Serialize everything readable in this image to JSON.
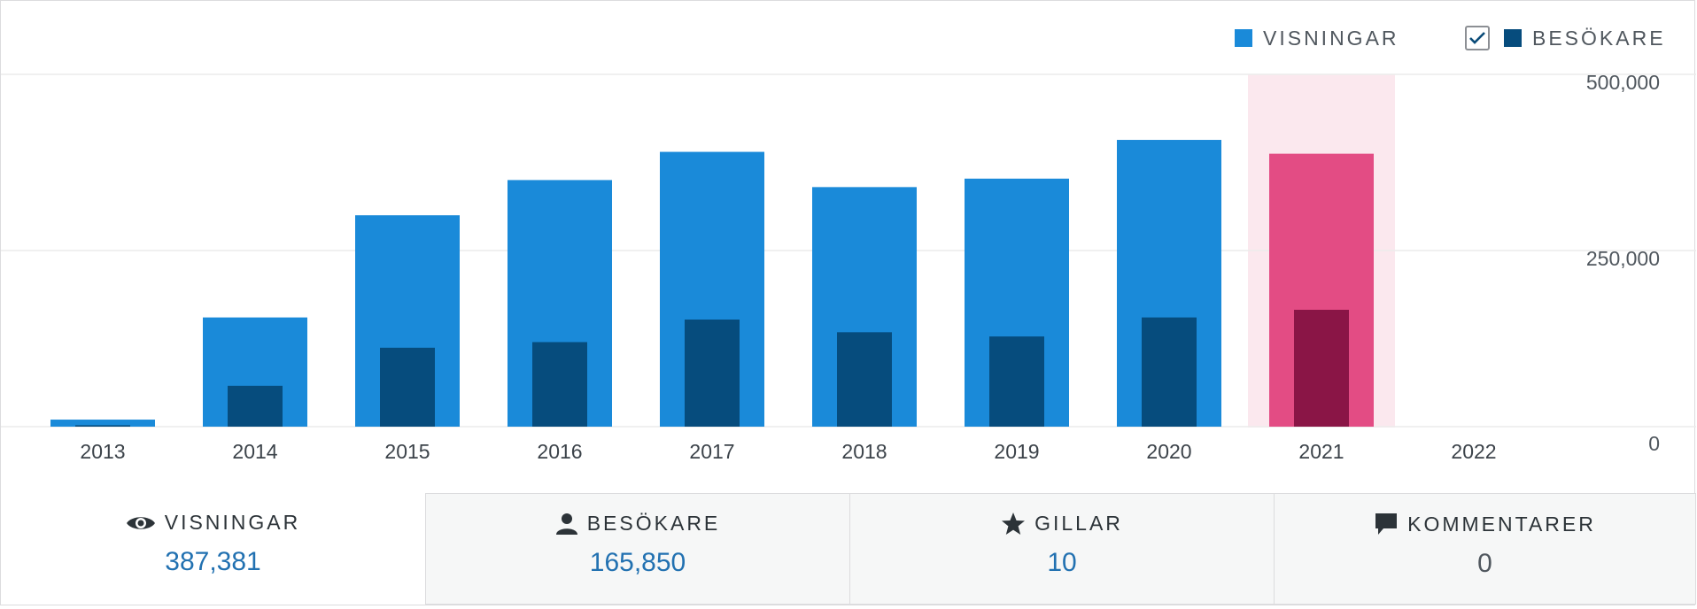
{
  "legend": {
    "views_label": "VISNINGAR",
    "visitors_label": "BESÖKARE",
    "visitors_checked": true
  },
  "colors": {
    "views": "#1a8ad9",
    "visitors": "#064c7d",
    "highlight_views": "#e34c84",
    "highlight_visitors": "#8a1546",
    "highlight_band": "#fbe8ee",
    "grid": "#ececec",
    "axis_text": "#50575e"
  },
  "chart_data": {
    "type": "bar",
    "categories": [
      "2013",
      "2014",
      "2015",
      "2016",
      "2017",
      "2018",
      "2019",
      "2020",
      "2021",
      "2022"
    ],
    "series": [
      {
        "name": "VISNINGAR",
        "values": [
          10000,
          155000,
          300000,
          350000,
          390000,
          340000,
          352000,
          407000,
          387381,
          0
        ]
      },
      {
        "name": "BESÖKARE",
        "values": [
          2000,
          58000,
          112000,
          120000,
          152000,
          134000,
          128000,
          155000,
          165850,
          0
        ]
      }
    ],
    "highlighted_category": "2021",
    "y_ticks": [
      "500,000",
      "250,000",
      "0"
    ],
    "ylim": [
      0,
      500000
    ],
    "grid": true,
    "y_axis_position": "right"
  },
  "stats": [
    {
      "label": "VISNINGAR",
      "value": "387,381",
      "icon": "eye-icon"
    },
    {
      "label": "BESÖKARE",
      "value": "165,850",
      "icon": "person-icon"
    },
    {
      "label": "GILLAR",
      "value": "10",
      "icon": "star-icon"
    },
    {
      "label": "KOMMENTARER",
      "value": "0",
      "icon": "comment-icon"
    }
  ]
}
